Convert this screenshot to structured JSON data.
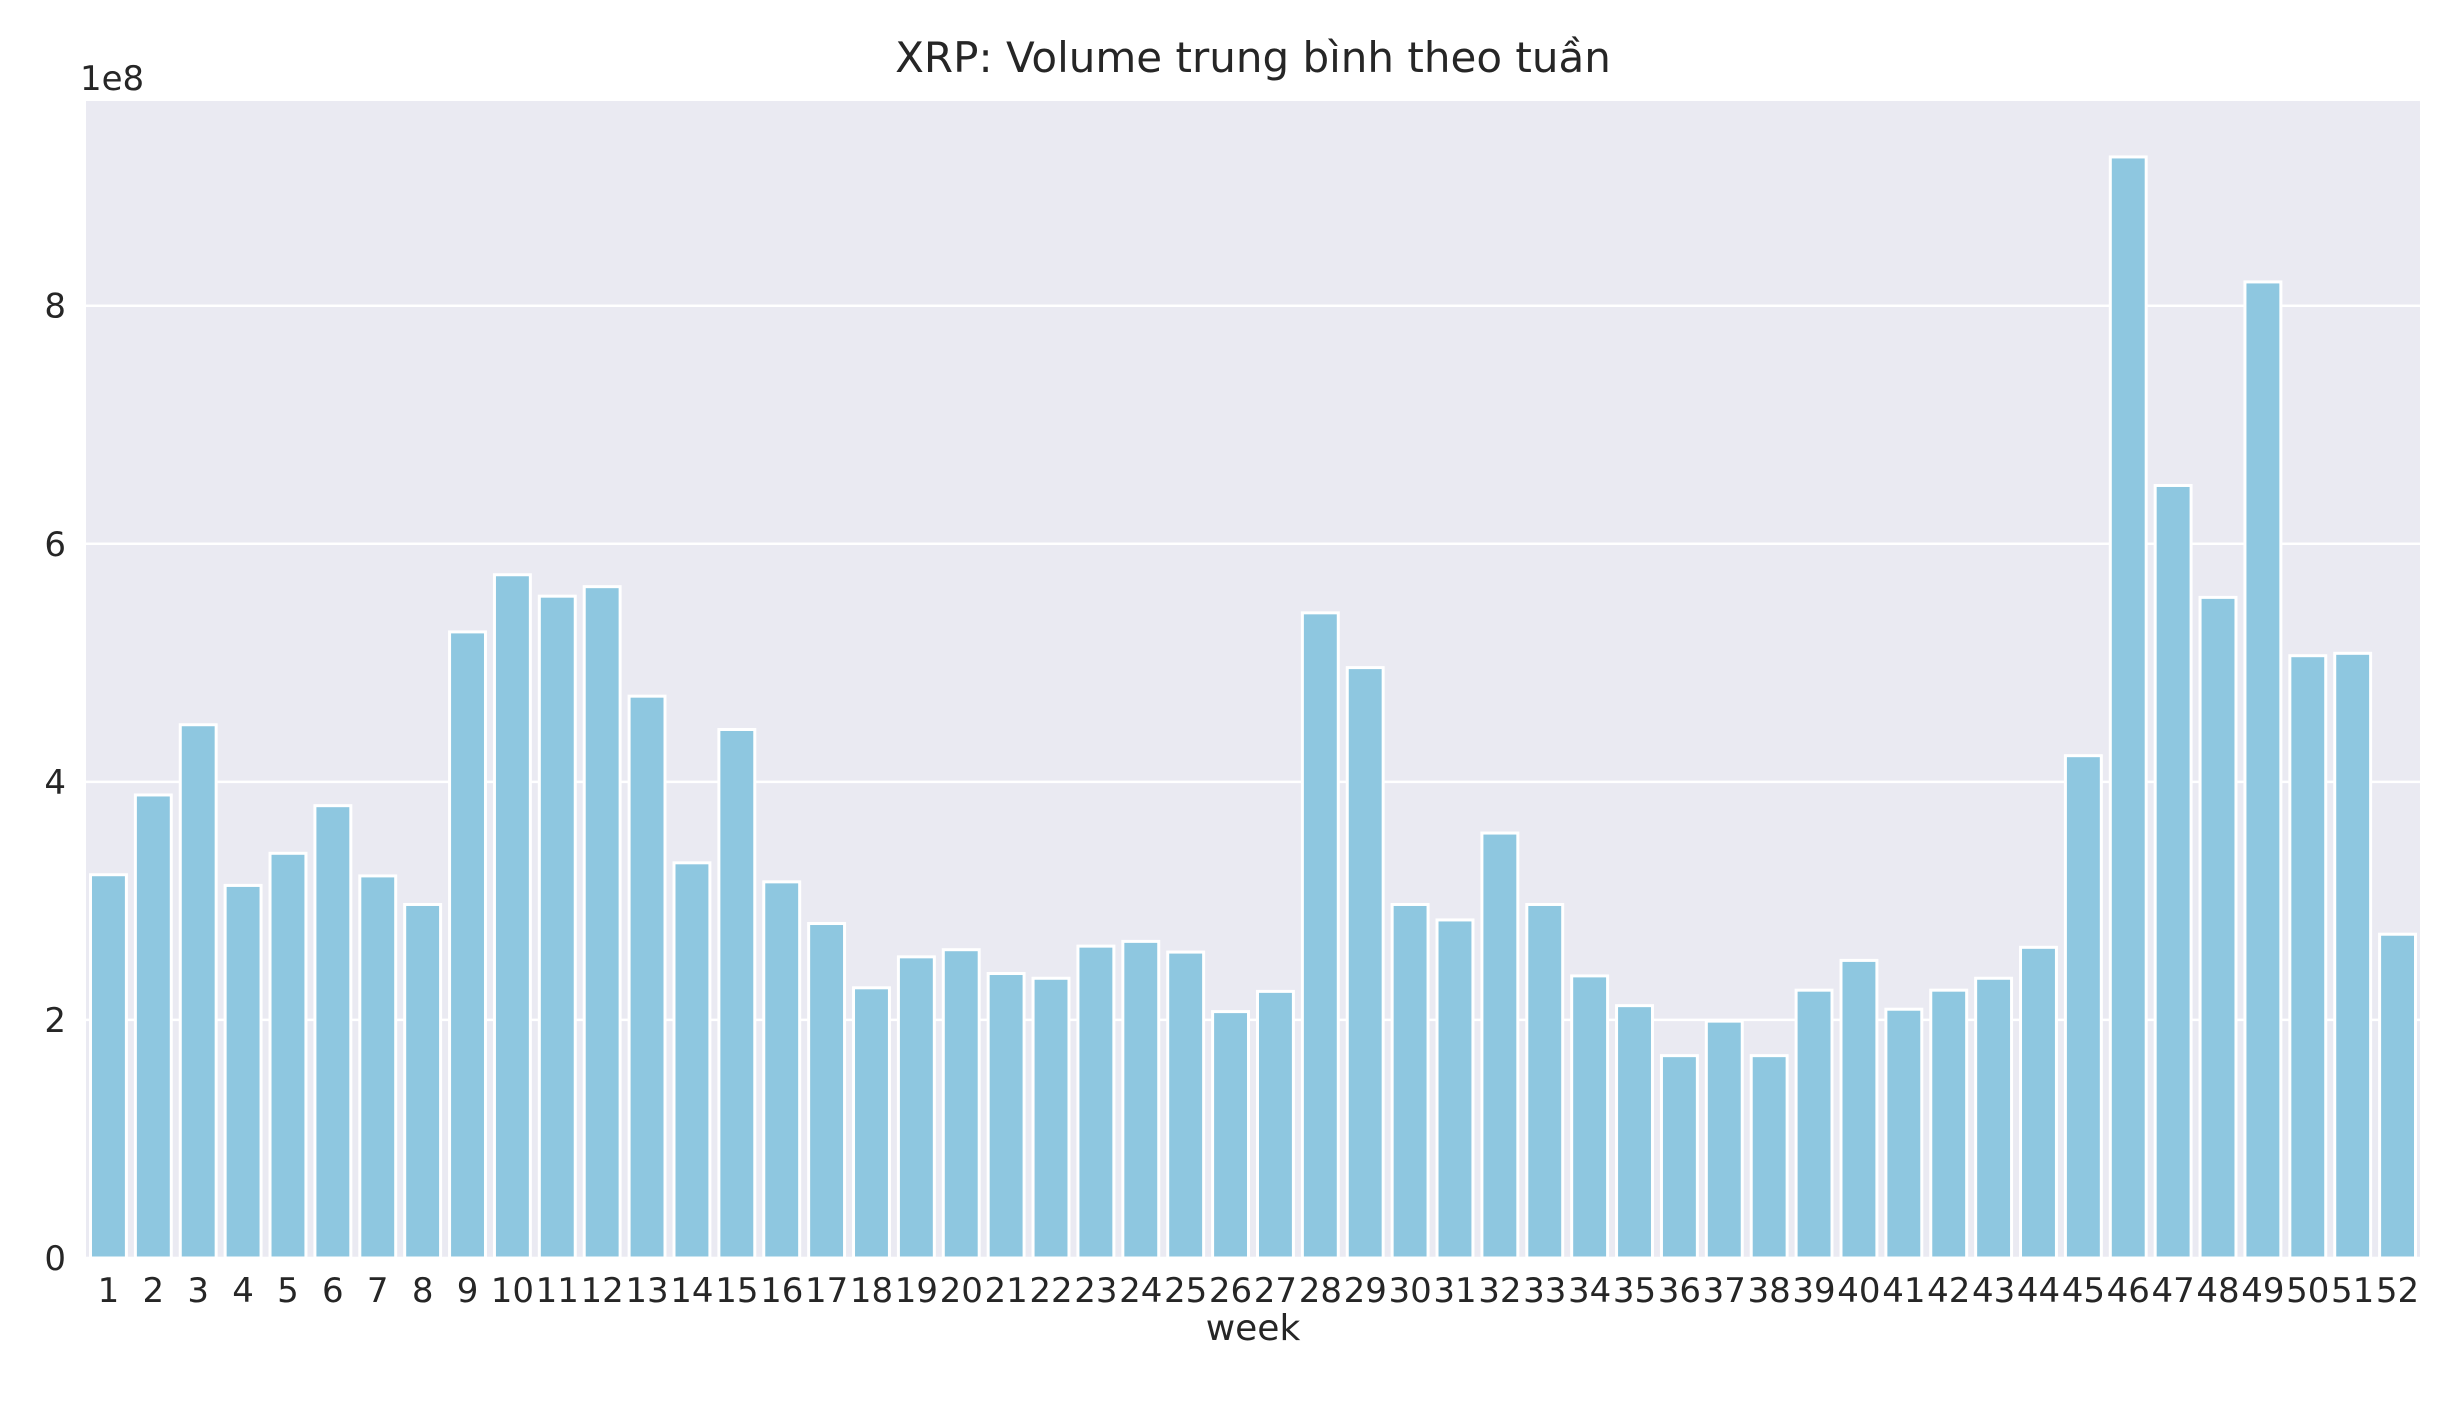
{
  "chart_data": {
    "type": "bar",
    "title": "XRP: Volume trung bình theo tuần",
    "xlabel": "week",
    "ylabel": "",
    "y_offset_label": "1e8",
    "categories": [
      "1",
      "2",
      "3",
      "4",
      "5",
      "6",
      "7",
      "8",
      "9",
      "10",
      "11",
      "12",
      "13",
      "14",
      "15",
      "16",
      "17",
      "18",
      "19",
      "20",
      "21",
      "22",
      "23",
      "24",
      "25",
      "26",
      "27",
      "28",
      "29",
      "30",
      "31",
      "32",
      "33",
      "34",
      "35",
      "36",
      "37",
      "38",
      "39",
      "40",
      "41",
      "42",
      "43",
      "44",
      "45",
      "46",
      "47",
      "48",
      "49",
      "50",
      "51",
      "52"
    ],
    "values": [
      322000000,
      389000000,
      448000000,
      313000000,
      340000000,
      380000000,
      321000000,
      297000000,
      526000000,
      574000000,
      556000000,
      564000000,
      472000000,
      332000000,
      444000000,
      316000000,
      281000000,
      227000000,
      253000000,
      259000000,
      239000000,
      235000000,
      262000000,
      266000000,
      257000000,
      207000000,
      224000000,
      542000000,
      496000000,
      297000000,
      284000000,
      357000000,
      297000000,
      237000000,
      212000000,
      170000000,
      199000000,
      170000000,
      225000000,
      250000000,
      209000000,
      225000000,
      235000000,
      261000000,
      422000000,
      925000000,
      649000000,
      555000000,
      820000000,
      506000000,
      508000000,
      272000000
    ],
    "yticks": [
      0,
      200000000,
      400000000,
      600000000,
      800000000
    ],
    "ytick_labels": [
      "0",
      "2",
      "4",
      "6",
      "8"
    ],
    "ylim": [
      0,
      972000000
    ],
    "bar_color": "#8ec7e0",
    "background_color": "#eaeaf2",
    "grid_color": "#ffffff",
    "grid": true,
    "legend": false
  }
}
